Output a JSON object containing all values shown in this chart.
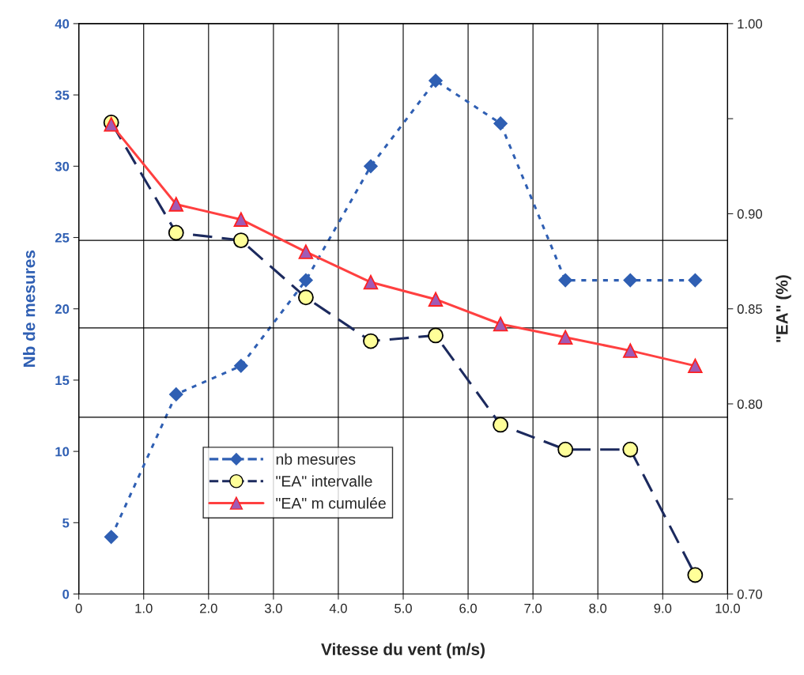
{
  "chart_data": {
    "type": "line",
    "xlabel": "Vitesse du vent (m/s)",
    "ylabel": "Nb de mesures",
    "y2label": "\"EA\" (%)",
    "x": [
      0.5,
      1.5,
      2.5,
      3.5,
      4.5,
      5.5,
      6.5,
      7.5,
      8.5,
      9.5
    ],
    "series": [
      {
        "name": "nb mesures",
        "color": "#2f5fb3",
        "marker": "diamond",
        "line_style": "dotted",
        "values": [
          4,
          14,
          16,
          22,
          30,
          36,
          33,
          22,
          22,
          22
        ]
      },
      {
        "name": "\"EA\" intervalle",
        "color": "#1c2a5e",
        "marker": "circle",
        "line_style": "dashed",
        "axis": "y2",
        "values": [
          0.948,
          0.89,
          0.886,
          0.856,
          0.833,
          0.836,
          0.789,
          0.776,
          0.776,
          0.71
        ]
      },
      {
        "name": "\"EA\" m cumulée",
        "color": "#ff4040",
        "marker": "triangle",
        "line_style": "solid",
        "axis": "y2",
        "values": [
          0.947,
          0.905,
          0.897,
          0.88,
          0.864,
          0.855,
          0.842,
          0.835,
          0.828,
          0.82
        ]
      }
    ],
    "xlim": [
      0,
      10
    ],
    "xticks": [
      0,
      {
        "value": 1,
        "label": "1.0"
      },
      {
        "value": 2,
        "label": "2.0"
      },
      {
        "value": 3,
        "label": "3.0"
      },
      {
        "value": 4,
        "label": "4.0"
      },
      {
        "value": 5,
        "label": "5.0"
      },
      {
        "value": 6,
        "label": "6.0"
      },
      {
        "value": 7,
        "label": "7.0"
      },
      {
        "value": 8,
        "label": "8.0"
      },
      {
        "value": 9,
        "label": "9.0"
      },
      {
        "value": 10,
        "label": "10.0"
      }
    ],
    "ylim": [
      0,
      40
    ],
    "yticks": [
      0,
      5,
      10,
      15,
      20,
      25,
      30,
      35,
      40
    ],
    "y2lim": [
      0.7,
      1.0
    ],
    "y2ticks": [
      {
        "value": 0.7,
        "label": "0.70"
      },
      {
        "value": 0.75,
        "label": null
      },
      {
        "value": 0.8,
        "label": "0.80"
      },
      {
        "value": 0.85,
        "label": "0.85"
      },
      {
        "value": 0.9,
        "label": "0.90"
      },
      {
        "value": 0.95,
        "label": null
      },
      {
        "value": 1.0,
        "label": "1.00"
      }
    ],
    "ref_lines": [
      {
        "axis": "y2",
        "value": 0.886,
        "color": "#000000"
      },
      {
        "axis": "y2",
        "value": 0.84,
        "color": "#000000"
      },
      {
        "axis": "y2",
        "value": 0.793,
        "color": "#000000"
      }
    ],
    "grid": "x",
    "legend": "bottom left"
  }
}
